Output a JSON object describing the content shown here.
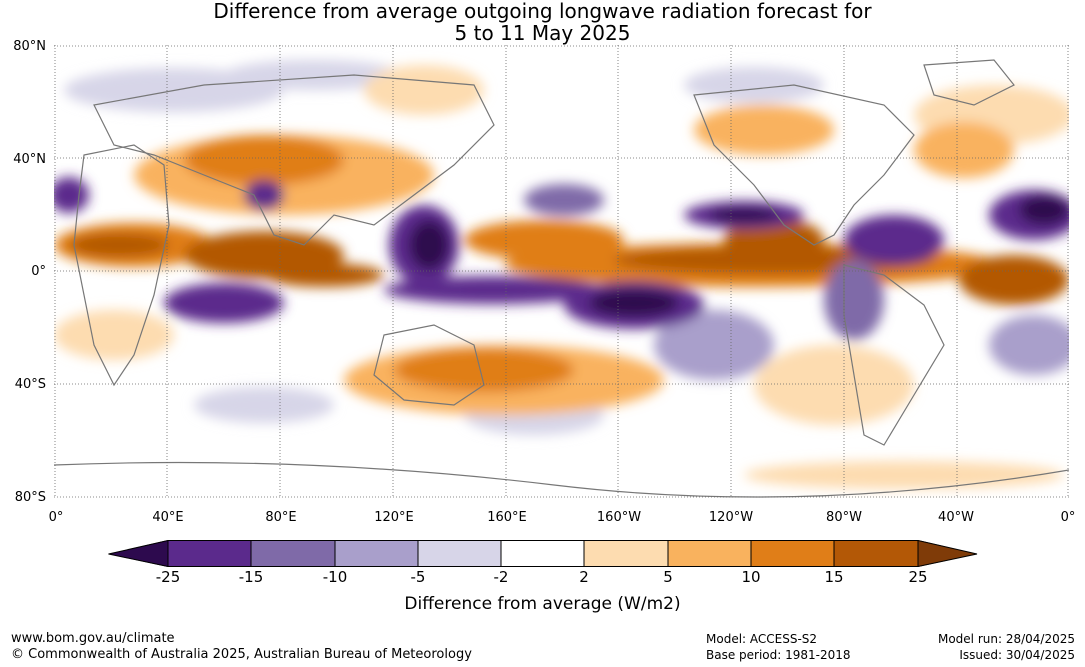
{
  "title": {
    "line1": "Difference from average outgoing longwave radiation forecast for",
    "line2": "5 to 11 May 2025"
  },
  "map": {
    "lat_labels": [
      "80°N",
      "40°N",
      "0°",
      "40°S",
      "80°S"
    ],
    "lon_labels": [
      "0°",
      "40°E",
      "80°E",
      "120°E",
      "160°E",
      "160°W",
      "120°W",
      "80°W",
      "40°W",
      "0°"
    ],
    "grid": true
  },
  "colorbar": {
    "title": "Difference from average (W/m2)",
    "ticks": [
      "-25",
      "-15",
      "-10",
      "-5",
      "-2",
      "2",
      "5",
      "10",
      "15",
      "25"
    ],
    "colors": [
      "#2d0a4e",
      "#5b2a8c",
      "#7f6aa8",
      "#a99fcb",
      "#d7d5e8",
      "#ffffff",
      "#fddcb0",
      "#f9b25e",
      "#e07e18",
      "#b35806",
      "#7f3b08"
    ]
  },
  "footer": {
    "website": "www.bom.gov.au/climate",
    "copyright": "© Commonwealth of Australia 2025, Australian Bureau of Meteorology",
    "model": "Model: ACCESS-S2",
    "base_period": "Base period: 1981-2018",
    "model_run": "Model run: 28/04/2025",
    "issued": "Issued: 30/04/2025"
  }
}
